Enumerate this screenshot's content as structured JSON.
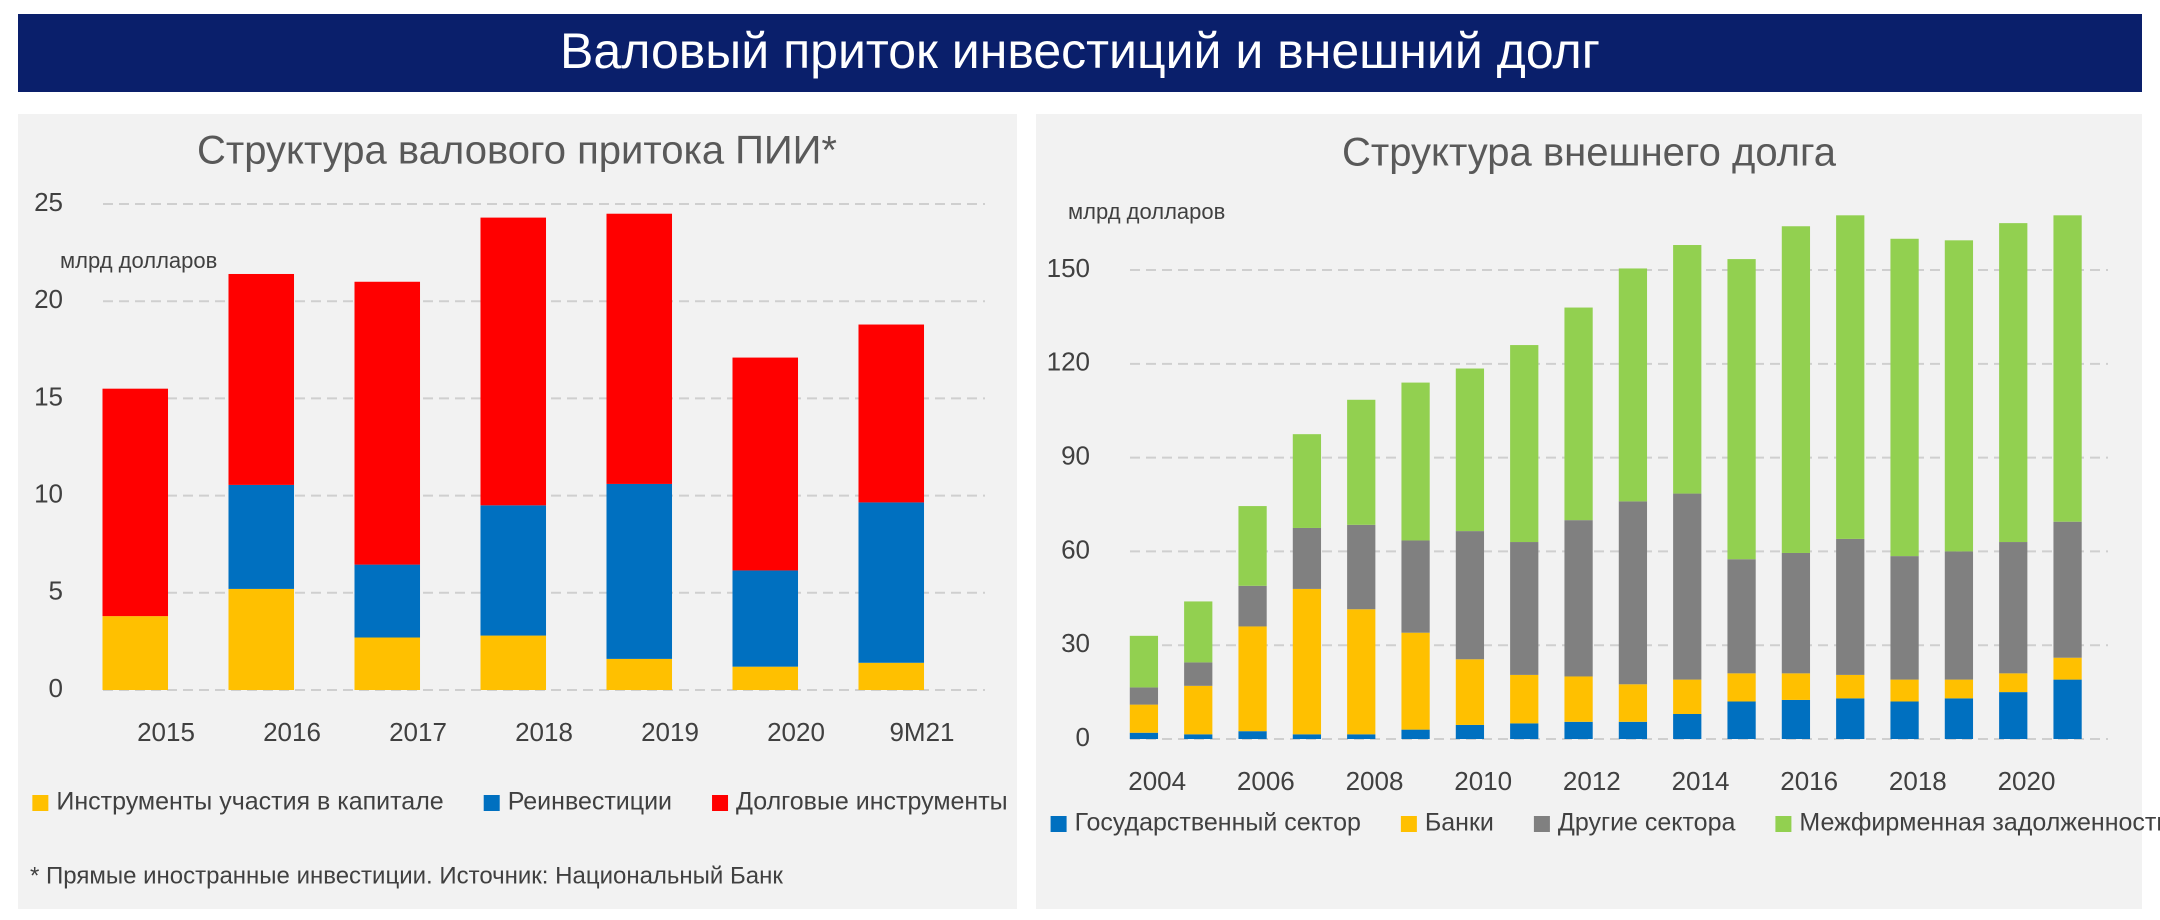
{
  "header": {
    "title": "Валовый приток инвестиций и внешний долг"
  },
  "footnote": "* Прямые иностранные инвестиции. Источник: Национальный Банк",
  "chart_data": [
    {
      "type": "bar",
      "stacked": true,
      "title": "Структура валового притока ПИИ*",
      "y_label": "млрд долларов",
      "categories": [
        "2015",
        "2016",
        "2017",
        "2018",
        "2019",
        "2020",
        "9M21"
      ],
      "series": [
        {
          "name": "Инструменты участия в капитале",
          "color": "#FFC000",
          "values": [
            3.8,
            5.2,
            2.7,
            2.8,
            1.6,
            1.2,
            1.4
          ]
        },
        {
          "name": "Реинвестиции",
          "color": "#0070C0",
          "values": [
            0,
            5.35,
            3.75,
            6.7,
            9.0,
            4.95,
            8.25
          ]
        },
        {
          "name": "Долговые инструменты",
          "color": "#FF0000",
          "values": [
            11.7,
            10.85,
            14.55,
            14.8,
            13.9,
            10.95,
            9.15
          ]
        }
      ],
      "ylim": [
        0,
        25
      ],
      "yticks": [
        0,
        5,
        10,
        15,
        20,
        25
      ],
      "grid": true
    },
    {
      "type": "bar",
      "stacked": true,
      "title": "Структура внешнего долга",
      "y_label": "млрд долларов",
      "categories": [
        "2004",
        null,
        "2006",
        null,
        "2008",
        null,
        "2010",
        null,
        "2012",
        null,
        "2014",
        null,
        "2016",
        null,
        "2018",
        null,
        "2020",
        null
      ],
      "series": [
        {
          "name": "Государственный сектор",
          "color": "#0070C0",
          "values": [
            2,
            1.5,
            2.5,
            1.5,
            1.5,
            3,
            4.5,
            5,
            5.5,
            5.5,
            8,
            12,
            12.5,
            13,
            12,
            13,
            15,
            19
          ]
        },
        {
          "name": "Банки",
          "color": "#FFC000",
          "values": [
            9,
            15.5,
            33.5,
            46.5,
            40,
            31,
            21,
            15.5,
            14.5,
            12,
            11,
            9,
            8.5,
            7.5,
            7,
            6,
            6,
            7
          ]
        },
        {
          "name": "Другие сектора",
          "color": "#808080",
          "values": [
            5.5,
            7.5,
            13,
            19.5,
            27,
            29.5,
            41,
            42.5,
            50,
            58.5,
            59.5,
            36.5,
            38.5,
            43.5,
            39.5,
            41,
            42,
            43.5
          ]
        },
        {
          "name": "Межфирменная задолженность",
          "color": "#92D050",
          "values": [
            16.5,
            19.5,
            25.5,
            30,
            40,
            50.5,
            52,
            63,
            68,
            74.5,
            79.5,
            96,
            104.5,
            103.5,
            101.5,
            99.5,
            102,
            98
          ]
        }
      ],
      "ylim": [
        0,
        170
      ],
      "yticks": [
        0,
        30,
        60,
        90,
        120,
        150
      ],
      "grid": true
    }
  ]
}
